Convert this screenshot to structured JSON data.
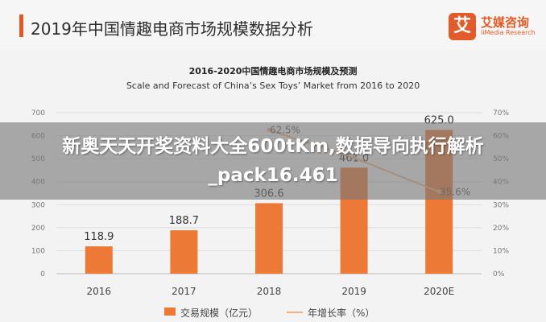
{
  "header": {
    "title": "2019年中国情趣电商市场规模数据分析",
    "logo_mark": "艾",
    "logo_name": "艾媒咨询",
    "logo_sub": "iiMedia Research"
  },
  "banner": {
    "text": "新奥天天开奖资料大全600tKm,数据导向执行解析_pack16.461"
  },
  "chart_data": {
    "type": "bar",
    "title": "2016-2020中国情趣电商市场规模及预测",
    "subtitle": "Scale and Forecast of China’s Sex Toys’ Market from 2016 to 2020",
    "categories": [
      "2016",
      "2017",
      "2018",
      "2019",
      "2020E"
    ],
    "series": [
      {
        "name": "交易规模（亿元）",
        "type": "bar",
        "axis": "left",
        "values": [
          118.9,
          188.7,
          306.6,
          461.0,
          625.0
        ],
        "labels": [
          "118.9",
          "188.7",
          "306.6",
          "461.0",
          "625.0"
        ],
        "color": "#ec7a36"
      },
      {
        "name": "年增长率（%）",
        "type": "line",
        "axis": "right",
        "values": [
          null,
          null,
          62.5,
          50.4,
          35.6
        ],
        "labels": [
          "",
          "",
          "62.5%",
          "",
          "35.6%"
        ],
        "color": "#f1b27f"
      }
    ],
    "y_left": {
      "min": 0,
      "max": 700,
      "ticks": [
        "0",
        "100",
        "200",
        "300",
        "400",
        "500",
        "600",
        "700"
      ]
    },
    "y_right": {
      "min": 0,
      "max": 70,
      "ticks": [
        "0%",
        "10%",
        "20%",
        "30%",
        "40%",
        "50%",
        "60%",
        "70%"
      ]
    },
    "grid": true,
    "legend": "bottom-center"
  }
}
